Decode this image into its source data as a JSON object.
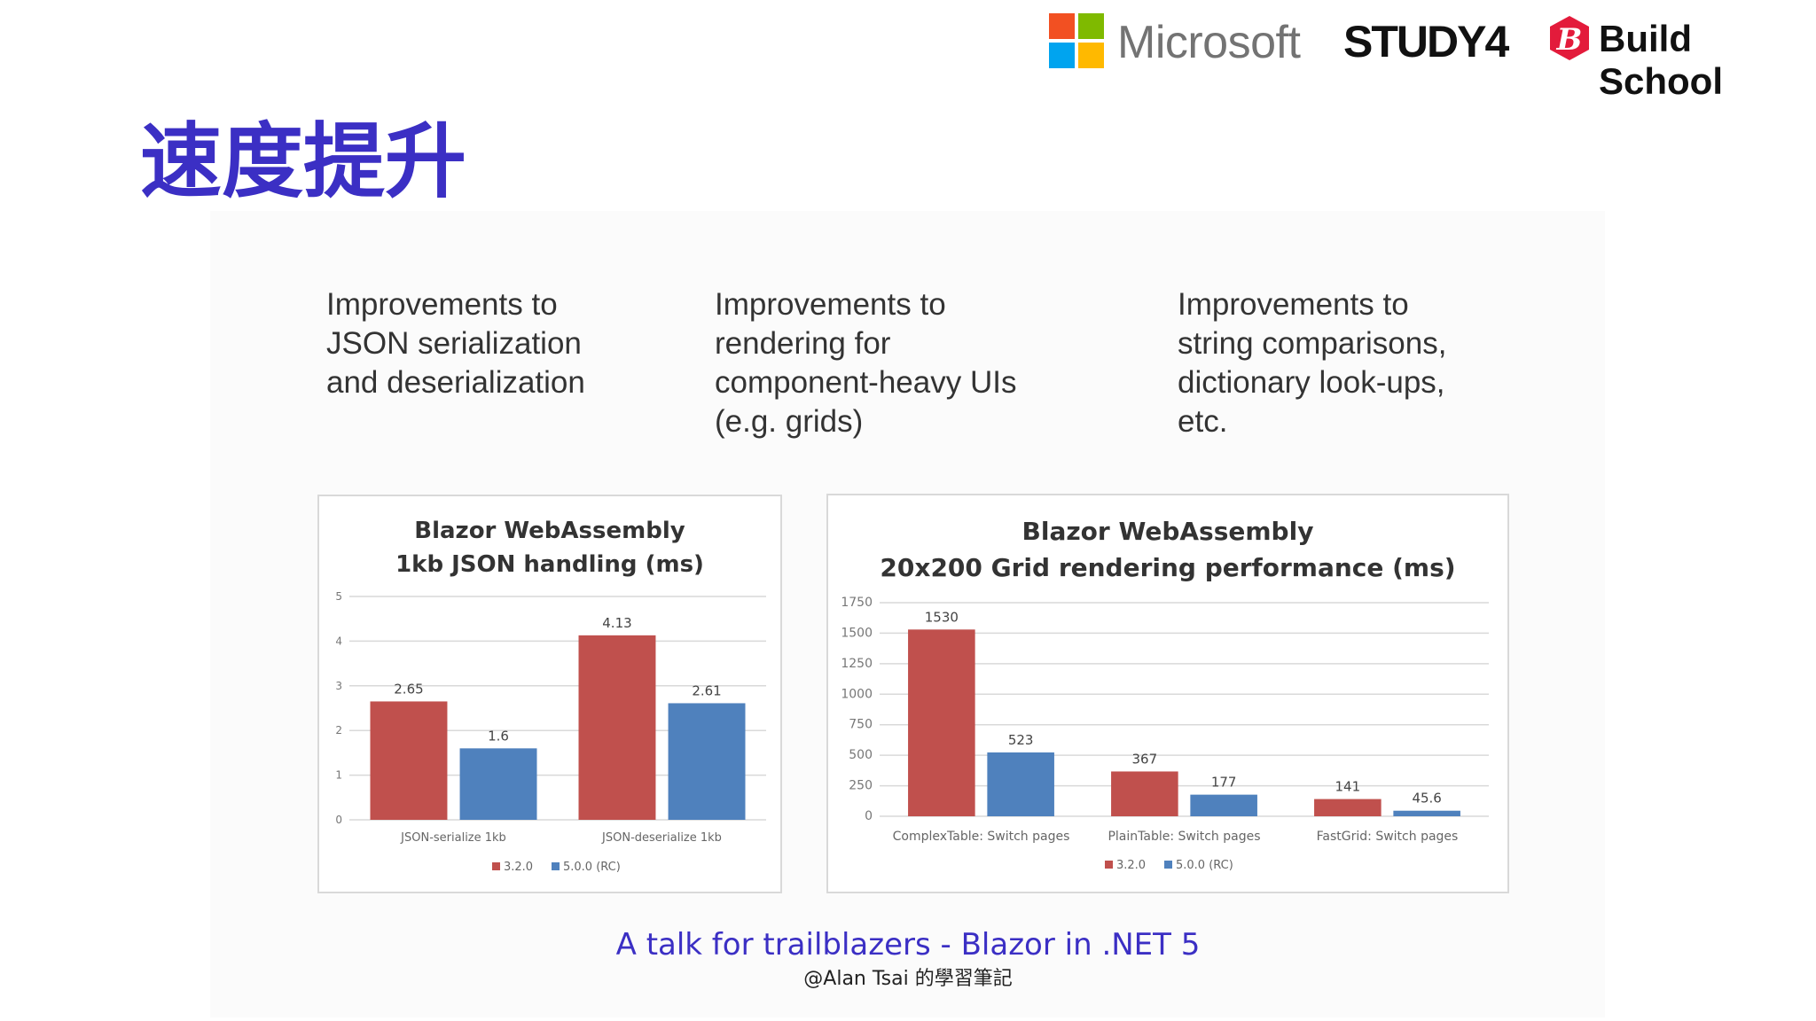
{
  "header": {
    "brand_microsoft": "Microsoft",
    "brand_study4": "STUDY4",
    "brand_buildschool": "Build School",
    "ms_colors": [
      "#f25022",
      "#7fba00",
      "#00a4ef",
      "#ffb900"
    ],
    "buildschool_color": "#e31b3b"
  },
  "slide": {
    "title": "速度提升",
    "descriptions": [
      "Improvements to\nJSON serialization\nand deserialization",
      "Improvements to\nrendering for\ncomponent-heavy UIs\n(e.g. grids)",
      "Improvements to\nstring comparisons,\ndictionary look-ups,\netc."
    ],
    "footer_title": "A talk for trailblazers - Blazor in .NET 5",
    "footer_credit": "@Alan Tsai 的學習筆記"
  },
  "colors": {
    "series_1": "#c0504d",
    "series_2": "#4f81bd"
  },
  "chart_data": [
    {
      "type": "bar",
      "title": "Blazor WebAssembly\n1kb JSON handling (ms)",
      "categories": [
        "JSON-serialize 1kb",
        "JSON-deserialize 1kb"
      ],
      "series": [
        {
          "name": "3.2.0",
          "values": [
            2.65,
            4.13
          ]
        },
        {
          "name": "5.0.0 (RC)",
          "values": [
            1.6,
            2.61
          ]
        }
      ],
      "data_labels": [
        [
          "2.65",
          "4.13"
        ],
        [
          "1.6",
          "2.61"
        ]
      ],
      "ylim": [
        0,
        5
      ],
      "yticks": [
        0,
        1,
        2,
        3,
        4,
        5
      ],
      "xlabel": "",
      "ylabel": "",
      "grid": true,
      "legend": "bottom"
    },
    {
      "type": "bar",
      "title": "Blazor WebAssembly\n20x200 Grid rendering performance (ms)",
      "categories": [
        "ComplexTable: Switch pages",
        "PlainTable: Switch pages",
        "FastGrid: Switch pages"
      ],
      "series": [
        {
          "name": "3.2.0",
          "values": [
            1530,
            367,
            141
          ]
        },
        {
          "name": "5.0.0 (RC)",
          "values": [
            523,
            177,
            45.6
          ]
        }
      ],
      "data_labels": [
        [
          "1530",
          "367",
          "141"
        ],
        [
          "523",
          "177",
          "45.6"
        ]
      ],
      "ylim": [
        0,
        1750
      ],
      "yticks": [
        0,
        250,
        500,
        750,
        1000,
        1250,
        1500,
        1750
      ],
      "xlabel": "",
      "ylabel": "",
      "grid": true,
      "legend": "bottom"
    }
  ]
}
